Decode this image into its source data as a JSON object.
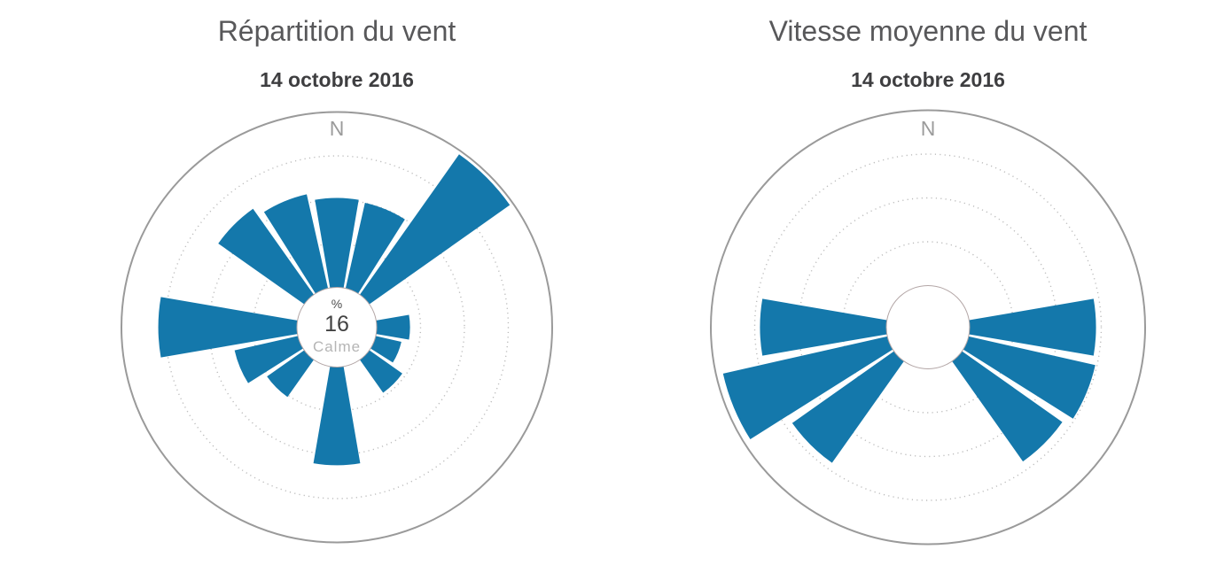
{
  "page": {
    "background": "#ffffff"
  },
  "colors": {
    "petal": "#1478ab",
    "outer_circle": "#9a9a9a",
    "grid_dots": "#bcbcbc",
    "hole_border": "#b3a6a6",
    "title": "#58585a",
    "subtitle": "#3e3e40",
    "north_label": "#9b9b9b",
    "center_value": "#424242",
    "center_caption": "#b5b5b5"
  },
  "chart_data": [
    {
      "type": "wind_rose",
      "title": "Répartition du vent",
      "subtitle": "14 octobre 2016",
      "north_label": "N",
      "center_labels": {
        "unit": "%",
        "value": "16",
        "caption": "Calme"
      },
      "calm_pct": 16,
      "legend": "none",
      "grid": "dotted-rings",
      "rings_frac": [
        0.25,
        0.5,
        0.75
      ],
      "sector_width_deg": 22.5,
      "sector_gap_deg": 3,
      "petals": [
        {
          "dir": "N",
          "angle_deg": 0,
          "length_frac": 0.51
        },
        {
          "dir": "NNE",
          "angle_deg": 22.5,
          "length_frac": 0.5
        },
        {
          "dir": "NE",
          "angle_deg": 45,
          "length_frac": 0.98
        },
        {
          "dir": "E",
          "angle_deg": 90,
          "length_frac": 0.19
        },
        {
          "dir": "ESE",
          "angle_deg": 112.5,
          "length_frac": 0.15
        },
        {
          "dir": "SE",
          "angle_deg": 135,
          "length_frac": 0.23
        },
        {
          "dir": "S",
          "angle_deg": 180,
          "length_frac": 0.56
        },
        {
          "dir": "SW",
          "angle_deg": 225,
          "length_frac": 0.26
        },
        {
          "dir": "WSW",
          "angle_deg": 247.5,
          "length_frac": 0.37
        },
        {
          "dir": "W",
          "angle_deg": 270,
          "length_frac": 0.79
        },
        {
          "dir": "NW",
          "angle_deg": 315,
          "length_frac": 0.6
        },
        {
          "dir": "NNW",
          "angle_deg": 337.5,
          "length_frac": 0.55
        }
      ]
    },
    {
      "type": "wind_rose",
      "title": "Vitesse moyenne du vent",
      "subtitle": "14 octobre 2016",
      "north_label": "N",
      "legend": "none",
      "grid": "dotted-rings",
      "rings_frac": [
        0.25,
        0.5,
        0.75
      ],
      "sector_width_deg": 22.5,
      "sector_gap_deg": 3,
      "petals": [
        {
          "dir": "E",
          "angle_deg": 90,
          "length_frac": 0.72
        },
        {
          "dir": "ESE",
          "angle_deg": 112.5,
          "length_frac": 0.74
        },
        {
          "dir": "SE",
          "angle_deg": 135,
          "length_frac": 0.7
        },
        {
          "dir": "SW",
          "angle_deg": 225,
          "length_frac": 0.71
        },
        {
          "dir": "WSW",
          "angle_deg": 247.5,
          "length_frac": 0.96
        },
        {
          "dir": "W",
          "angle_deg": 270,
          "length_frac": 0.72
        }
      ]
    }
  ]
}
